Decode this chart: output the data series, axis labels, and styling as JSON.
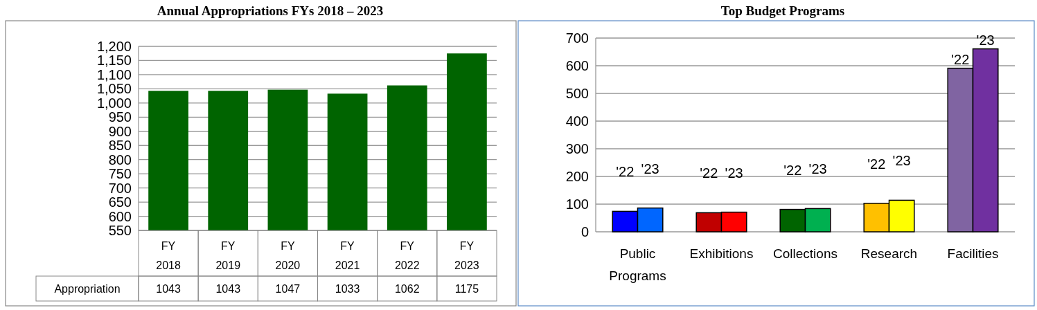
{
  "chart_data": [
    {
      "type": "bar",
      "title": "Annual Appropriations FYs 2018 – 2023",
      "categories": [
        "FY 2018",
        "FY 2019",
        "FY 2020",
        "FY 2021",
        "FY 2022",
        "FY 2023"
      ],
      "series": [
        {
          "name": "Appropriation",
          "color": "#006400",
          "values": [
            1043,
            1043,
            1047,
            1033,
            1062,
            1175
          ]
        }
      ],
      "ylim": [
        550,
        1200
      ],
      "yticks": [
        550,
        600,
        650,
        700,
        750,
        800,
        850,
        900,
        950,
        {
          "value": 1000,
          "label": "1,000"
        },
        {
          "value": 1050,
          "label": "1,050"
        },
        {
          "value": 1100,
          "label": "1,100"
        },
        {
          "value": 1150,
          "label": "1,150"
        },
        {
          "value": 1200,
          "label": "1,200"
        }
      ],
      "grid": "y",
      "data_labels": true
    },
    {
      "type": "bar",
      "title": "Top Budget Programs",
      "categories": [
        "Public Programs",
        "Exhibitions",
        "Collections",
        "Research",
        "Facilities"
      ],
      "series": [
        {
          "name": "'22",
          "colors": [
            "#0000ff",
            "#c00000",
            "#006400",
            "#ffc000",
            "#8064a2"
          ],
          "values": [
            74,
            69,
            81,
            103,
            591
          ]
        },
        {
          "name": "'23",
          "colors": [
            "#0066ff",
            "#ff0000",
            "#00b050",
            "#ffff00",
            "#7030a0"
          ],
          "values": [
            86,
            71,
            84,
            114,
            661
          ]
        }
      ],
      "ylim": [
        0,
        700
      ],
      "yticks": [
        0,
        100,
        200,
        300,
        400,
        500,
        600,
        700
      ],
      "grid": "y"
    }
  ]
}
